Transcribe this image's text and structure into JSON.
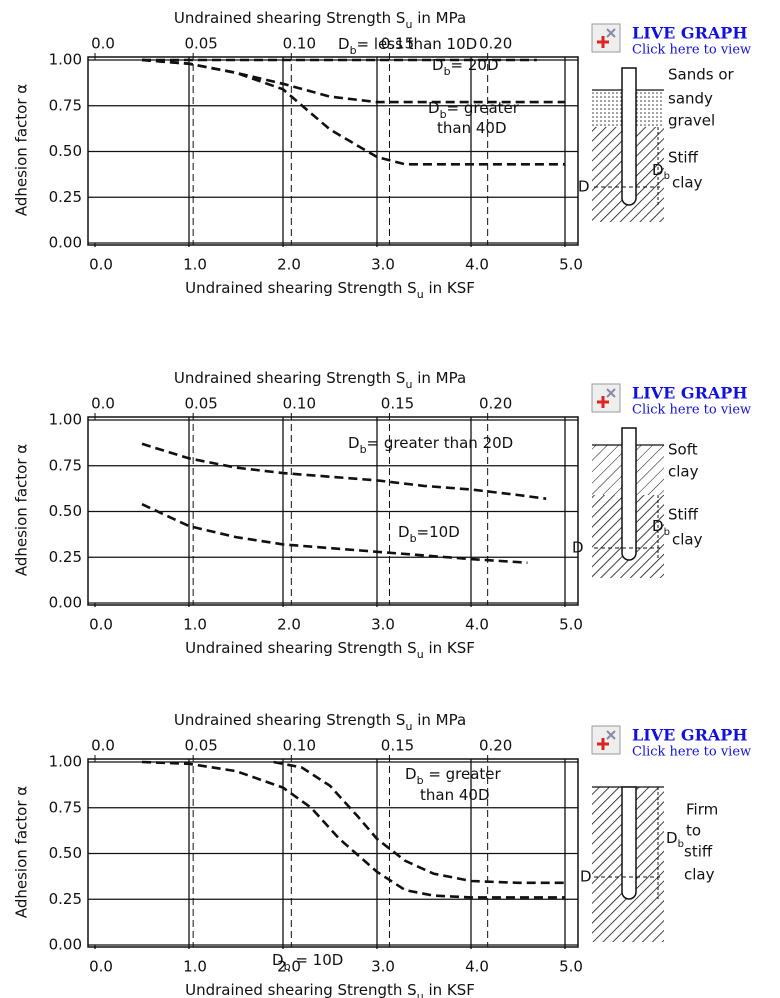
{
  "chart_data": [
    {
      "type": "line",
      "x_label": [
        "Undrained shearing Strength S",
        "u",
        " in KSF"
      ],
      "x2_label": [
        "Undrained shearing Strength S",
        "u",
        " in MPa"
      ],
      "y_label": "Adhesion factor α",
      "xlim": [
        0,
        5
      ],
      "xticks": [
        {
          "value": 0,
          "label": "0.0"
        },
        {
          "value": 1,
          "label": "1.0"
        },
        {
          "value": 2,
          "label": "2.0"
        },
        {
          "value": 3,
          "label": "3.0"
        },
        {
          "value": 4,
          "label": "4.0"
        },
        {
          "value": 5,
          "label": "5.0"
        }
      ],
      "x2lim": [
        0,
        0.2394
      ],
      "x2ticks": [
        {
          "value": 0,
          "label": "0.0"
        },
        0.05,
        {
          "value": 0.1,
          "label": "0.10"
        },
        0.15,
        {
          "value": 0.2,
          "label": "0.20"
        }
      ],
      "ylim": [
        0,
        1
      ],
      "yticks": [
        {
          "value": 0,
          "label": "0.00"
        },
        0.25,
        {
          "value": 0.5,
          "label": "0.50"
        },
        0.75,
        {
          "value": 1,
          "label": "1.00"
        }
      ],
      "grid": true,
      "series": [
        {
          "label_lines": [
            [
              "D",
              "b",
              "= less than 10D"
            ]
          ],
          "color": "#111111",
          "x": [
            0.5,
            1,
            2,
            3,
            4,
            4.7
          ],
          "values": [
            1,
            1,
            1,
            1,
            1,
            1
          ]
        },
        {
          "label_lines": [
            [
              "D",
              "b",
              "= 20D"
            ]
          ],
          "color": "#111111",
          "x": [
            0.5,
            1,
            1.5,
            2,
            2.5,
            3,
            4,
            5
          ],
          "values": [
            1,
            0.98,
            0.93,
            0.87,
            0.8,
            0.77,
            0.77,
            0.77
          ]
        },
        {
          "label_lines": [
            [
              "D",
              "b",
              "= greater"
            ],
            [
              "than 40D"
            ]
          ],
          "color": "#111111",
          "x": [
            0.5,
            1,
            1.5,
            2,
            2.5,
            3,
            3.3,
            4,
            5
          ],
          "values": [
            1,
            0.98,
            0.93,
            0.84,
            0.62,
            0.47,
            0.43,
            0.43,
            0.43
          ]
        }
      ],
      "link": {
        "title": "LIVE GRAPH",
        "subtitle": "Click here to view"
      },
      "diagram": {
        "labels": [
          "Sands or",
          "sandy",
          "gravel",
          "Stiff",
          "clay"
        ],
        "depth_label": [
          "D",
          "b"
        ],
        "end_label": "D"
      }
    },
    {
      "type": "line",
      "x_label": [
        "Undrained shearing Strength S",
        "u",
        " in KSF"
      ],
      "x2_label": [
        "Undrained shearing Strength S",
        "u",
        " in MPa"
      ],
      "y_label": "Adhesion factor α",
      "xlim": [
        0,
        5
      ],
      "xticks": [
        {
          "value": 0,
          "label": "0.0"
        },
        {
          "value": 1,
          "label": "1.0"
        },
        {
          "value": 2,
          "label": "2.0"
        },
        {
          "value": 3,
          "label": "3.0"
        },
        {
          "value": 4,
          "label": "4.0"
        },
        {
          "value": 5,
          "label": "5.0"
        }
      ],
      "x2lim": [
        0,
        0.2394
      ],
      "x2ticks": [
        {
          "value": 0,
          "label": "0.0"
        },
        0.05,
        {
          "value": 0.1,
          "label": "0.10"
        },
        0.15,
        {
          "value": 0.2,
          "label": "0.20"
        }
      ],
      "ylim": [
        0,
        1
      ],
      "yticks": [
        {
          "value": 0,
          "label": "0.00"
        },
        0.25,
        {
          "value": 0.5,
          "label": "0.50"
        },
        0.75,
        {
          "value": 1,
          "label": "1.00"
        }
      ],
      "grid": true,
      "series": [
        {
          "label_lines": [
            [
              "D",
              "b",
              "= greater than 20D"
            ]
          ],
          "color": "#111111",
          "x": [
            0.5,
            1,
            1.5,
            2,
            2.5,
            3,
            3.5,
            4,
            4.5,
            4.8
          ],
          "values": [
            0.87,
            0.79,
            0.74,
            0.71,
            0.69,
            0.67,
            0.64,
            0.62,
            0.59,
            0.57
          ]
        },
        {
          "label_lines": [
            [
              "D",
              "b",
              "=10D"
            ]
          ],
          "color": "#111111",
          "x": [
            0.5,
            1,
            1.5,
            2,
            2.5,
            3,
            3.5,
            4,
            4.6
          ],
          "values": [
            0.54,
            0.42,
            0.36,
            0.32,
            0.3,
            0.28,
            0.26,
            0.24,
            0.22
          ]
        }
      ],
      "link": {
        "title": "LIVE GRAPH",
        "subtitle": "Click here to view"
      },
      "diagram": {
        "labels": [
          "Soft",
          "clay",
          "Stiff",
          "clay"
        ],
        "depth_label": [
          "D",
          "b"
        ],
        "end_label": "D"
      }
    },
    {
      "type": "line",
      "x_label": [
        "Undrained shearing Strength S",
        "u",
        " in KSF"
      ],
      "x2_label": [
        "Undrained shearing Strength S",
        "u",
        " in MPa"
      ],
      "y_label": "Adhesion factor α",
      "xlim": [
        0,
        5
      ],
      "xticks": [
        {
          "value": 0,
          "label": "0.0"
        },
        {
          "value": 1,
          "label": "1.0"
        },
        {
          "value": 2,
          "label": "2.0"
        },
        {
          "value": 3,
          "label": "3.0"
        },
        {
          "value": 4,
          "label": "4.0"
        },
        {
          "value": 5,
          "label": "5.0"
        }
      ],
      "x2lim": [
        0,
        0.2394
      ],
      "x2ticks": [
        {
          "value": 0,
          "label": "0.0"
        },
        0.05,
        {
          "value": 0.1,
          "label": "0.10"
        },
        0.15,
        {
          "value": 0.2,
          "label": "0.20"
        }
      ],
      "ylim": [
        0,
        1
      ],
      "yticks": [
        {
          "value": 0,
          "label": "0.00"
        },
        0.25,
        {
          "value": 0.5,
          "label": "0.50"
        },
        0.75,
        {
          "value": 1,
          "label": "1.00"
        }
      ],
      "grid": true,
      "series": [
        {
          "label_lines": [
            [
              "D",
              "b",
              " = greater"
            ],
            [
              "than 40D"
            ]
          ],
          "color": "#111111",
          "x": [
            1.9,
            2.2,
            2.5,
            2.8,
            3,
            3.3,
            3.6,
            4,
            4.5,
            5
          ],
          "values": [
            1,
            0.97,
            0.87,
            0.7,
            0.58,
            0.46,
            0.39,
            0.35,
            0.34,
            0.34
          ]
        },
        {
          "label_lines": [
            [
              "D",
              "b",
              " = 10D"
            ]
          ],
          "color": "#111111",
          "x": [
            0.5,
            1,
            1.5,
            2,
            2.3,
            2.6,
            3,
            3.3,
            3.6,
            4,
            5
          ],
          "values": [
            1,
            0.99,
            0.95,
            0.86,
            0.75,
            0.58,
            0.4,
            0.3,
            0.27,
            0.26,
            0.26
          ]
        }
      ],
      "link": {
        "title": "LIVE GRAPH",
        "subtitle": "Click here to view"
      },
      "diagram": {
        "labels": [
          "Firm",
          "to",
          "stiff",
          "clay"
        ],
        "depth_label": [
          "D",
          "b"
        ],
        "end_label": "D"
      }
    }
  ]
}
